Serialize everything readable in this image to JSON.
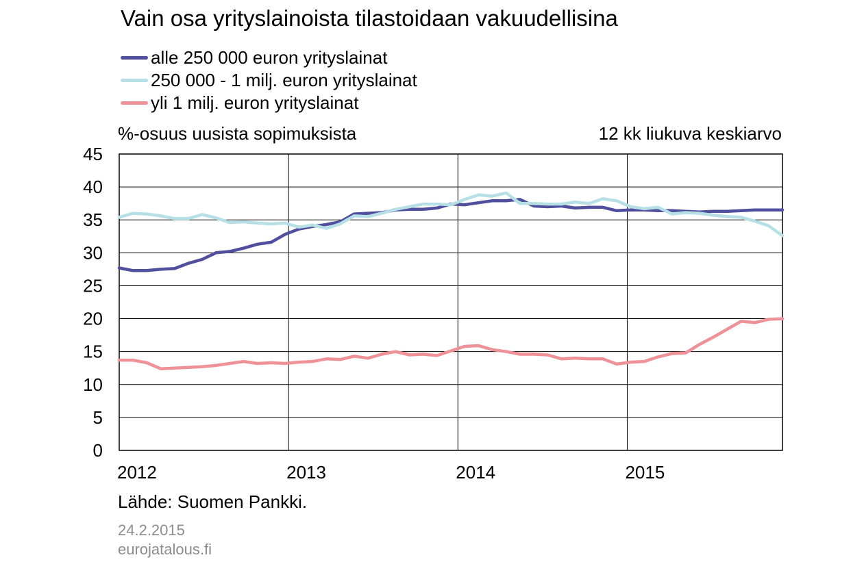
{
  "chart_data": {
    "type": "line",
    "title": "Vain osa yrityslainoista tilastoidaan vakuudellisina",
    "ylabel": "%-osuus uusista sopimuksista",
    "note": "12 kk liukuva keskiarvo",
    "xlabel": "",
    "ylim": [
      0,
      45
    ],
    "yticks": [
      0,
      5,
      10,
      15,
      20,
      25,
      30,
      35,
      40,
      45
    ],
    "xticks": [
      "2012",
      "2013",
      "2014",
      "2015"
    ],
    "grid": true,
    "legend": "top-left",
    "x_start": "2012-01",
    "x_end": "2015-12",
    "series": [
      {
        "name": "alle 250 000 euron yrityslainat",
        "color": "#4f4f9e",
        "values": [
          27.7,
          27.3,
          27.3,
          27.5,
          27.6,
          28.4,
          29.0,
          30.0,
          30.2,
          30.7,
          31.3,
          31.6,
          32.8,
          33.6,
          34.0,
          34.3,
          34.7,
          35.9,
          36.0,
          36.1,
          36.5,
          36.6,
          36.6,
          36.8,
          37.4,
          37.3,
          37.6,
          37.9,
          37.9,
          38.1,
          37.1,
          37.0,
          37.1,
          36.8,
          36.9,
          36.9,
          36.4,
          36.5,
          36.5,
          36.4,
          36.4,
          36.3,
          36.2,
          36.3,
          36.3,
          36.4,
          36.5,
          36.5,
          36.5
        ]
      },
      {
        "name": "250 000 - 1 milj. euron yrityslainat",
        "color": "#b7e0e6",
        "values": [
          35.4,
          36.0,
          35.9,
          35.6,
          35.2,
          35.2,
          35.8,
          35.3,
          34.6,
          34.7,
          34.5,
          34.4,
          34.5,
          33.9,
          34.2,
          33.7,
          34.4,
          35.6,
          35.5,
          36.0,
          36.6,
          37.0,
          37.4,
          37.4,
          37.3,
          38.1,
          38.8,
          38.6,
          39.1,
          37.5,
          37.5,
          37.4,
          37.4,
          37.7,
          37.5,
          38.2,
          37.9,
          37.0,
          36.7,
          36.9,
          35.9,
          36.1,
          36.0,
          35.7,
          35.5,
          35.4,
          34.8,
          34.1,
          32.6
        ]
      },
      {
        "name": "yli 1 milj. euron yrityslainat",
        "color": "#ef9298",
        "values": [
          13.7,
          13.7,
          13.3,
          12.4,
          12.5,
          12.6,
          12.7,
          12.9,
          13.2,
          13.5,
          13.2,
          13.3,
          13.2,
          13.4,
          13.5,
          13.9,
          13.8,
          14.3,
          14.0,
          14.6,
          15.0,
          14.5,
          14.6,
          14.4,
          15.1,
          15.8,
          15.9,
          15.3,
          15.0,
          14.6,
          14.6,
          14.5,
          13.9,
          14.0,
          13.9,
          13.9,
          13.1,
          13.4,
          13.5,
          14.2,
          14.7,
          14.8,
          16.1,
          17.2,
          18.4,
          19.6,
          19.4,
          19.9,
          20.0
        ]
      }
    ]
  },
  "source": "Lähde: Suomen Pankki.",
  "date": "24.2.2015",
  "site": "eurojatalous.fi"
}
